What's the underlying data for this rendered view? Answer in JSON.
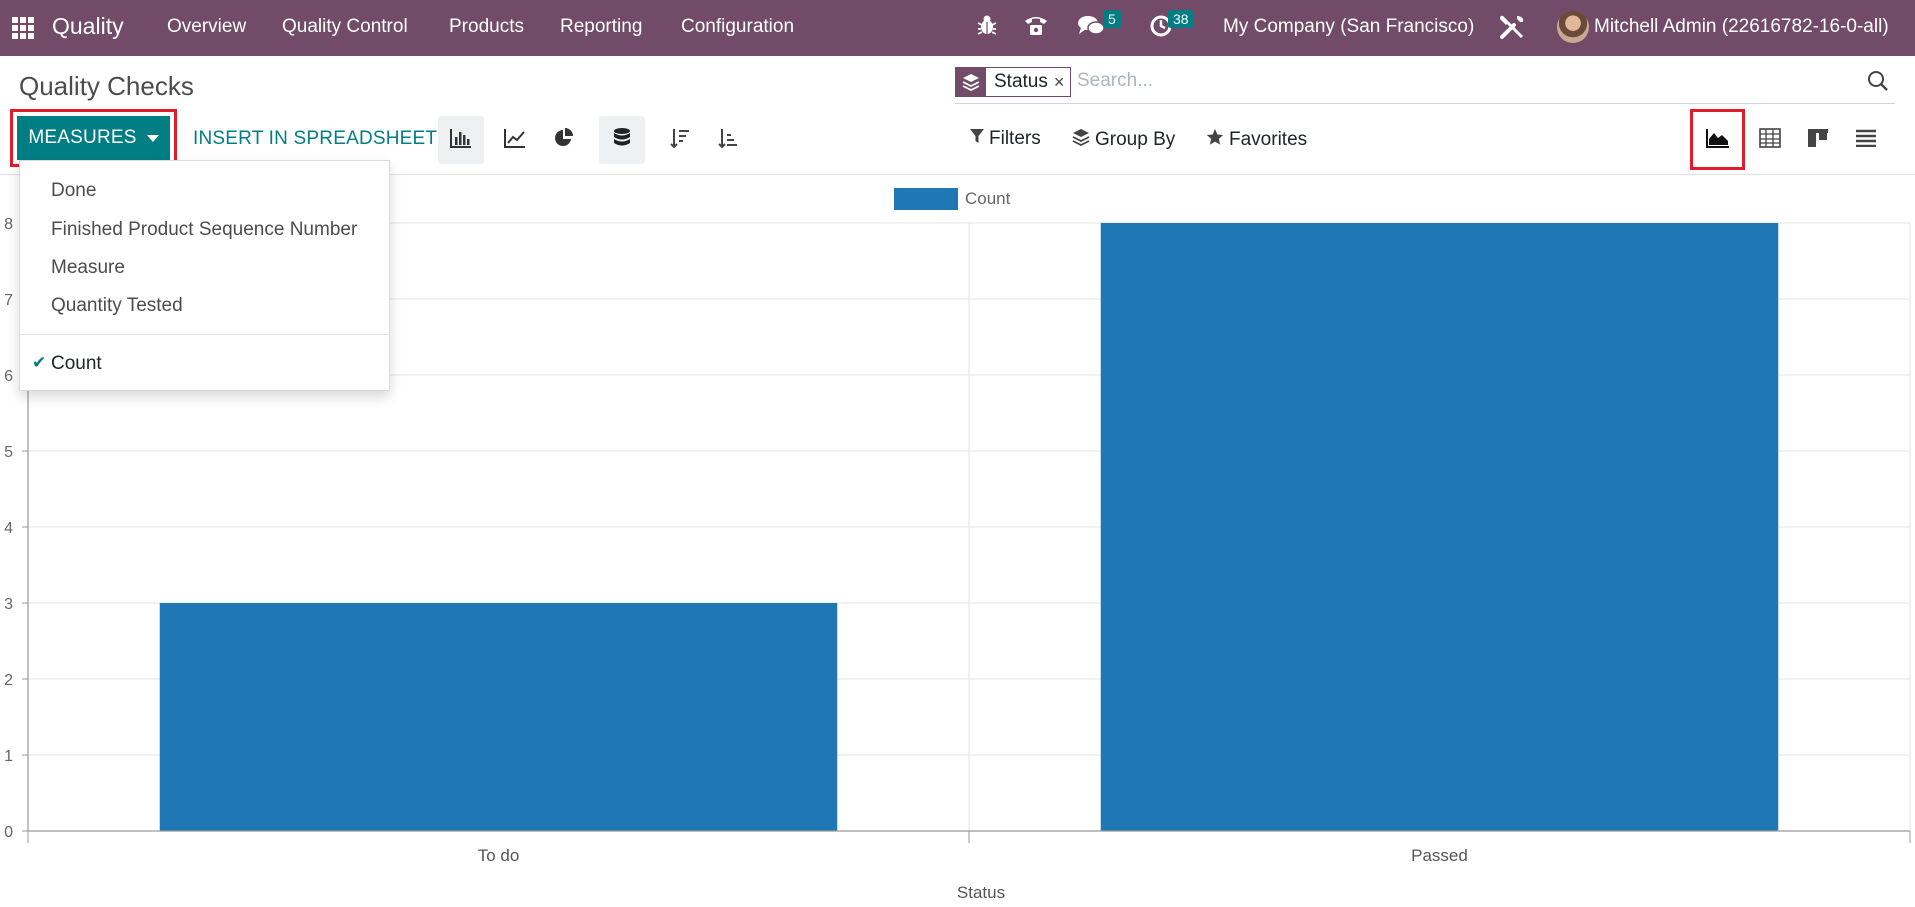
{
  "navbar": {
    "app_name": "Quality",
    "menus": [
      "Overview",
      "Quality Control",
      "Products",
      "Reporting",
      "Configuration"
    ],
    "messages_count": "5",
    "activities_count": "38",
    "company": "My Company (San Francisco)",
    "user": "Mitchell Admin (22616782-16-0-all)",
    "bg_color": "#714b67"
  },
  "control_panel": {
    "title": "Quality Checks",
    "facet_value": "Status",
    "facet_remove": "×",
    "search_placeholder": "Search...",
    "measures_label": "MEASURES",
    "insert_label": "INSERT IN SPREADSHEET",
    "filters_label": "Filters",
    "groupby_label": "Group By",
    "favorites_label": "Favorites",
    "accent_color": "#017e84"
  },
  "measures_dropdown": {
    "items": [
      "Done",
      "Finished Product Sequence Number",
      "Measure",
      "Quantity Tested"
    ],
    "selected": "Count"
  },
  "chart_data": {
    "type": "bar",
    "categories": [
      "To do",
      "Passed"
    ],
    "series": [
      {
        "name": "Count",
        "values": [
          3,
          8
        ],
        "color": "#1f77b4"
      }
    ],
    "xlabel": "Status",
    "ylabel": "",
    "ylim": [
      0,
      8
    ],
    "yticks": [
      0,
      1,
      2,
      3,
      4,
      5,
      6,
      7,
      8
    ],
    "grid": true,
    "legend_position": "top-center"
  }
}
